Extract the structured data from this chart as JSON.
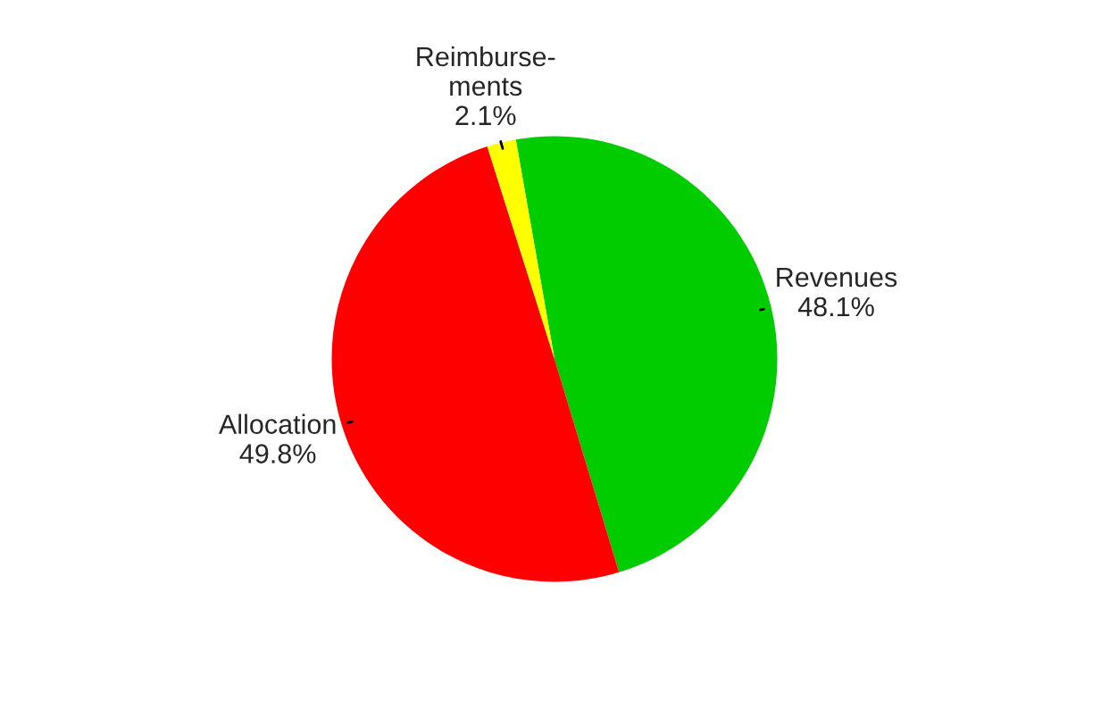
{
  "chart_data": {
    "type": "pie",
    "categories": [
      "Revenues",
      "Allocation",
      "Reimburse-\nments"
    ],
    "values": [
      48.1,
      49.8,
      2.1
    ],
    "value_labels": [
      "48.1%",
      "49.8%",
      "2.1%"
    ],
    "colors": [
      "#00cc00",
      "#ff0000",
      "#ffff00"
    ]
  }
}
